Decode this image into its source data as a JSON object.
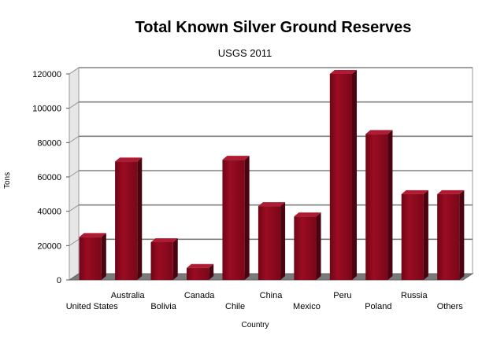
{
  "chart_data": {
    "type": "bar",
    "title": "Total Known Silver Ground Reserves",
    "subtitle": "USGS  2011",
    "xlabel": "Country",
    "ylabel": "Tons",
    "ylim": [
      0,
      120000
    ],
    "yticks": [
      0,
      20000,
      40000,
      60000,
      80000,
      100000,
      120000
    ],
    "grid": true,
    "legend": "none",
    "bar_color": "#8a0a1e",
    "categories": [
      "United States",
      "Australia",
      "Bolivia",
      "Canada",
      "Chile",
      "China",
      "Mexico",
      "Peru",
      "Poland",
      "Russia",
      "Others"
    ],
    "values": [
      25000,
      69000,
      22000,
      7000,
      70000,
      43000,
      37000,
      120000,
      85000,
      50000,
      50000
    ]
  }
}
